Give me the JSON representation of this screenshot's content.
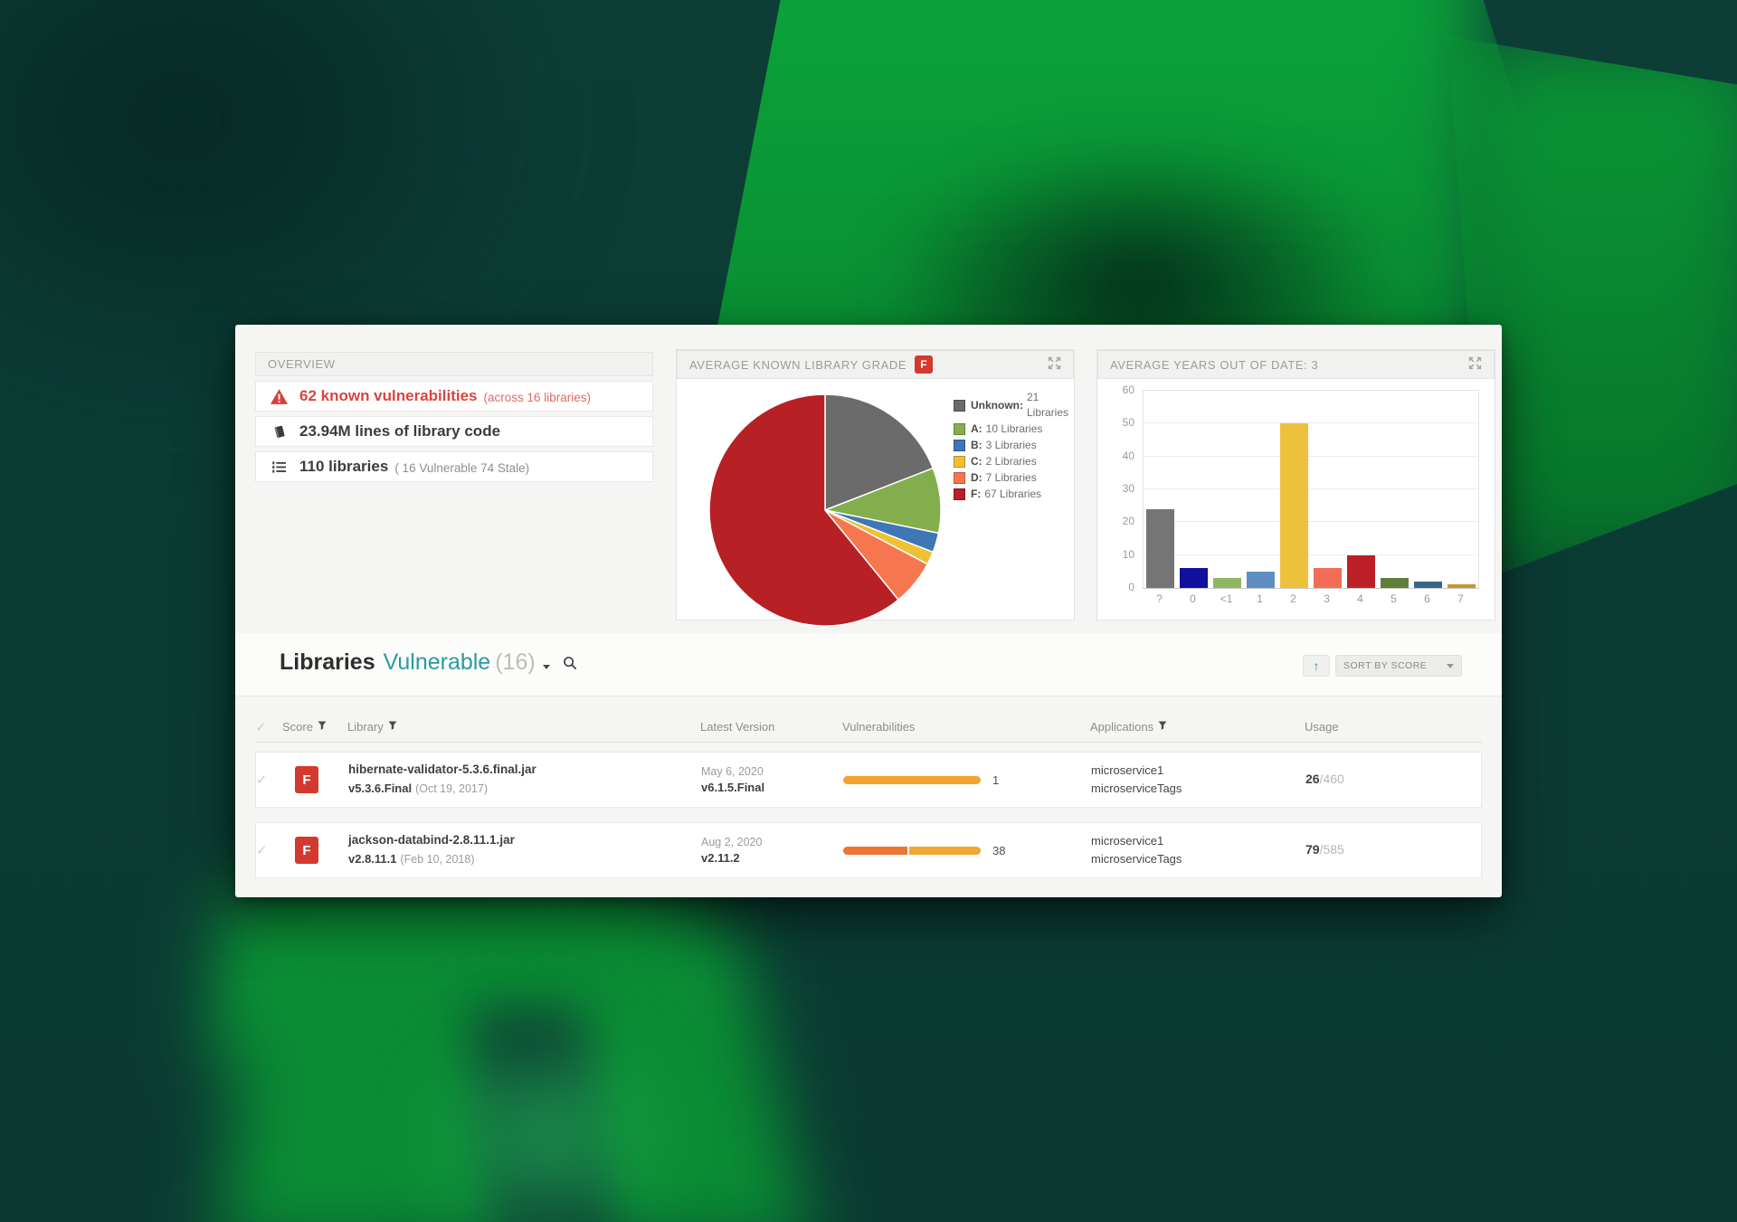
{
  "overview": {
    "title": "OVERVIEW",
    "items": [
      {
        "icon": "warning-triangle-icon",
        "primary": "62 known vulnerabilities",
        "secondary": "(across 16 libraries)"
      },
      {
        "icon": "book-icon",
        "primary": "23.94M lines of library code",
        "secondary": ""
      },
      {
        "icon": "ordered-list-icon",
        "primary": "110 libraries",
        "secondary": "( 16 Vulnerable 74 Stale)"
      }
    ]
  },
  "grade_card": {
    "title": "AVERAGE KNOWN LIBRARY GRADE",
    "grade_badge": "F"
  },
  "years_card": {
    "title": "AVERAGE YEARS OUT OF DATE: 3"
  },
  "chart_data": [
    {
      "type": "pie",
      "title": "AVERAGE KNOWN LIBRARY GRADE",
      "total": 110,
      "legend_position": "right",
      "slices": [
        {
          "label": "Unknown:",
          "value": 21,
          "value_text": "21 Libraries",
          "color": "#6b6b6b"
        },
        {
          "label": "A:",
          "value": 10,
          "value_text": "10 Libraries",
          "color": "#83ae4d"
        },
        {
          "label": "B:",
          "value": 3,
          "value_text": "3 Libraries",
          "color": "#3f76b4"
        },
        {
          "label": "C:",
          "value": 2,
          "value_text": "2 Libraries",
          "color": "#eec134"
        },
        {
          "label": "D:",
          "value": 7,
          "value_text": "7 Libraries",
          "color": "#f6774f"
        },
        {
          "label": "F:",
          "value": 67,
          "value_text": "67 Libraries",
          "color": "#b72025"
        }
      ]
    },
    {
      "type": "bar",
      "title": "AVERAGE YEARS OUT OF DATE: 3",
      "categories": [
        "?",
        "0",
        "<1",
        "1",
        "2",
        "3",
        "4",
        "5",
        "6",
        "7"
      ],
      "values": [
        24,
        6,
        3,
        5,
        50,
        6,
        10,
        3,
        2,
        1
      ],
      "colors": [
        "#757575",
        "#10109d",
        "#8fb763",
        "#5e8fc0",
        "#eec13d",
        "#f26c57",
        "#bc2026",
        "#5e7e3a",
        "#39658b",
        "#c0992b"
      ],
      "xlabel": "",
      "ylabel": "",
      "ylim": [
        0,
        60
      ],
      "yticks": [
        0,
        10,
        20,
        30,
        40,
        50,
        60
      ],
      "grid": true
    }
  ],
  "libraries_section": {
    "title": "Libraries",
    "filter_label": "Vulnerable",
    "filter_count": "(16)",
    "sort_direction": "↑",
    "sort_label": "SORT BY SCORE"
  },
  "table": {
    "columns": [
      "Score",
      "Library",
      "Latest Version",
      "Vulnerabilities",
      "Applications",
      "Usage"
    ],
    "rows": [
      {
        "score": "F",
        "library_name": "hibernate-validator-5.3.6.final.jar",
        "library_version": "v5.3.6.Final",
        "library_released": "(Oct 19, 2017)",
        "latest_date": "May 6, 2020",
        "latest_version": "v6.1.5.Final",
        "vuln_count": "1",
        "vuln_segments": [
          {
            "color": "#f3a32d",
            "pct": 100
          }
        ],
        "applications": [
          "microservice1",
          "microserviceTags"
        ],
        "usage_value": "26",
        "usage_total": "/460"
      },
      {
        "score": "F",
        "library_name": "jackson-databind-2.8.11.1.jar",
        "library_version": "v2.8.11.1",
        "library_released": "(Feb 10, 2018)",
        "latest_date": "Aug 2, 2020",
        "latest_version": "v2.11.2",
        "vuln_count": "38",
        "vuln_segments": [
          {
            "color": "#ee7434",
            "pct": 48
          },
          {
            "color": "#f0a832",
            "pct": 52
          }
        ],
        "applications": [
          "microservice1",
          "microserviceTags"
        ],
        "usage_value": "79",
        "usage_total": "/585"
      }
    ]
  },
  "colors": {
    "accent_teal": "#2b9aa1",
    "grade_red": "#d4392f",
    "alert_red": "#d9443f"
  }
}
